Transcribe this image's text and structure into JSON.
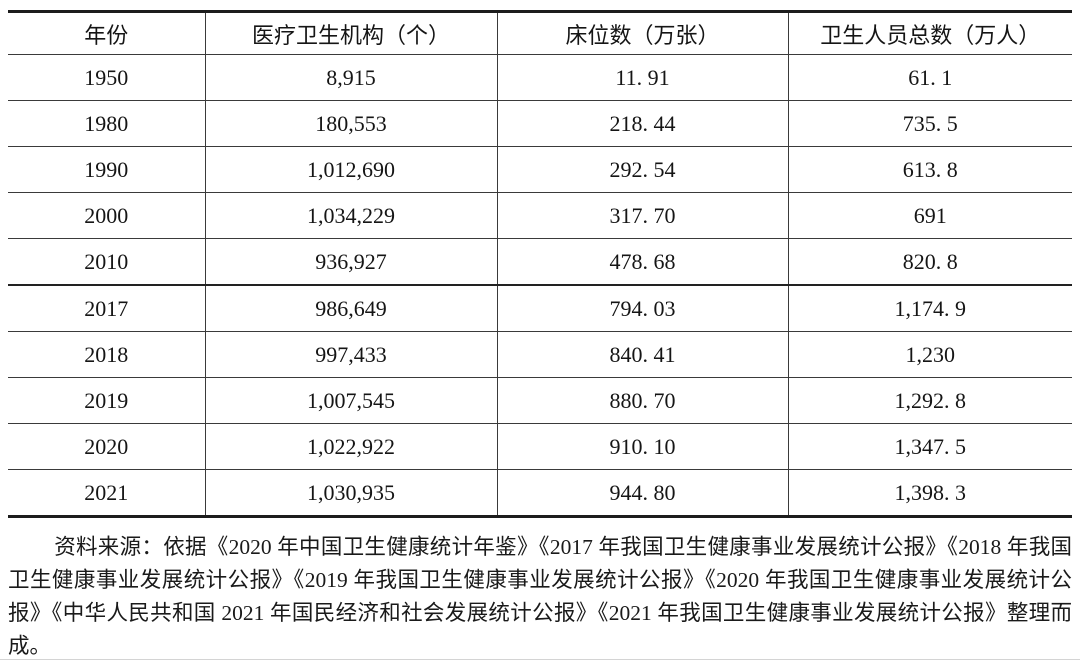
{
  "table": {
    "columns": [
      {
        "label": "年份"
      },
      {
        "label": "医疗卫生机构（个）"
      },
      {
        "label": "床位数（万张）"
      },
      {
        "label": "卫生人员总数（万人）"
      }
    ],
    "rows": [
      {
        "year": "1950",
        "institutions": "8,915",
        "beds": "11. 91",
        "personnel": "61. 1"
      },
      {
        "year": "1980",
        "institutions": "180,553",
        "beds": "218. 44",
        "personnel": "735. 5"
      },
      {
        "year": "1990",
        "institutions": "1,012,690",
        "beds": "292. 54",
        "personnel": "613. 8"
      },
      {
        "year": "2000",
        "institutions": "1,034,229",
        "beds": "317. 70",
        "personnel": "691"
      },
      {
        "year": "2010",
        "institutions": "936,927",
        "beds": "478. 68",
        "personnel": "820. 8"
      },
      {
        "year": "2017",
        "institutions": "986,649",
        "beds": "794. 03",
        "personnel": "1,174. 9"
      },
      {
        "year": "2018",
        "institutions": "997,433",
        "beds": "840. 41",
        "personnel": "1,230"
      },
      {
        "year": "2019",
        "institutions": "1,007,545",
        "beds": "880. 70",
        "personnel": "1,292. 8"
      },
      {
        "year": "2020",
        "institutions": "1,022,922",
        "beds": "910. 10",
        "personnel": "1,347. 5"
      },
      {
        "year": "2021",
        "institutions": "1,030,935",
        "beds": "944. 80",
        "personnel": "1,398. 3"
      }
    ]
  },
  "source_note": "资料来源：依据《2020 年中国卫生健康统计年鉴》《2017 年我国卫生健康事业发展统计公报》《2018 年我国卫生健康事业发展统计公报》《2019 年我国卫生健康事业发展统计公报》《2020 年我国卫生健康事业发展统计公报》《中华人民共和国 2021 年国民经济和社会发展统计公报》《2021 年我国卫生健康事业发展统计公报》整理而成。"
}
